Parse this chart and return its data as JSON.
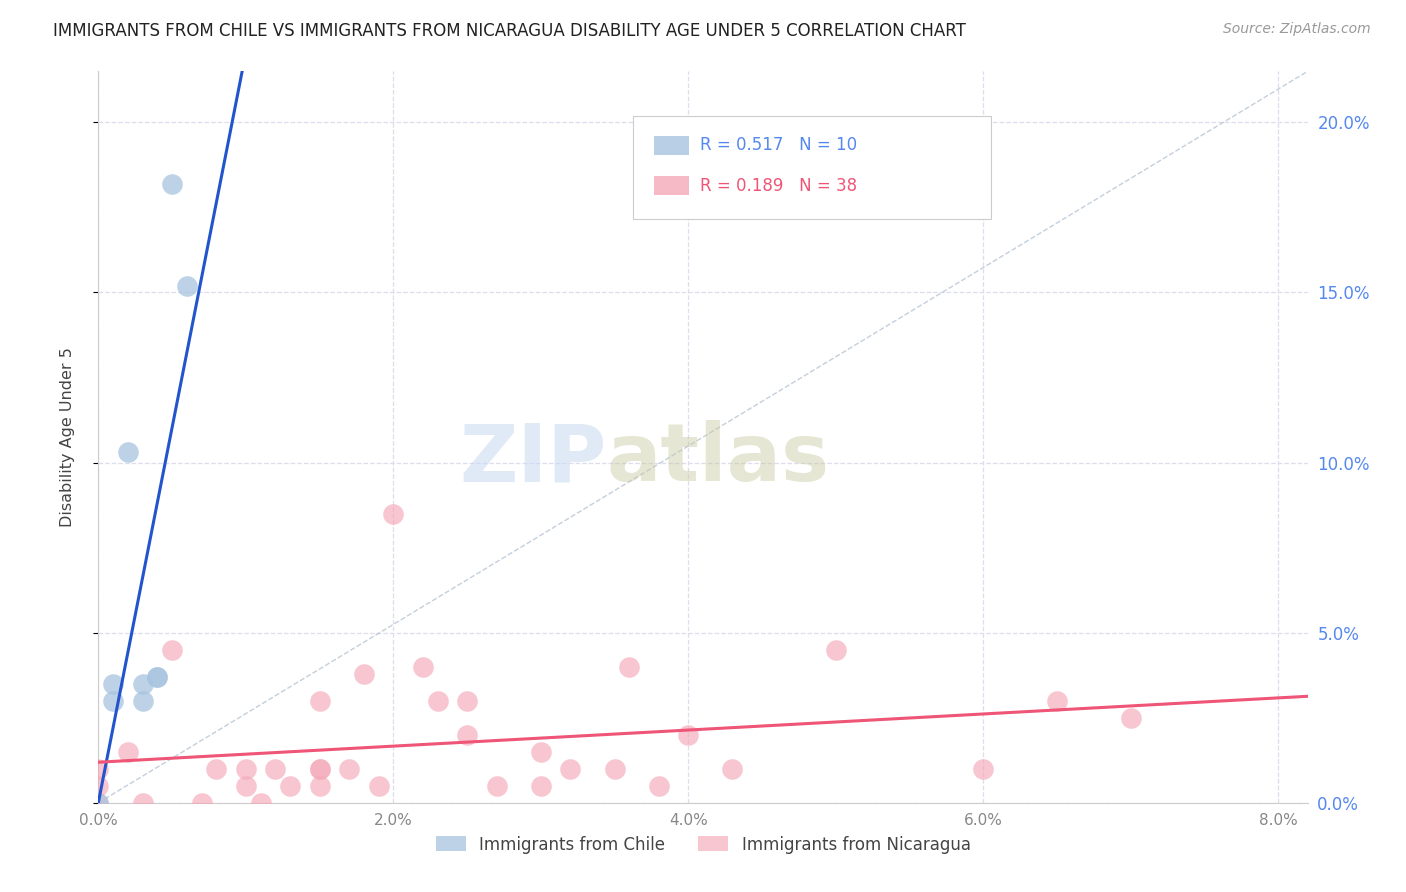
{
  "title": "IMMIGRANTS FROM CHILE VS IMMIGRANTS FROM NICARAGUA DISABILITY AGE UNDER 5 CORRELATION CHART",
  "source": "Source: ZipAtlas.com",
  "ylabel": "Disability Age Under 5",
  "legend_chile": "Immigrants from Chile",
  "legend_nicaragua": "Immigrants from Nicaragua",
  "R_chile": 0.517,
  "N_chile": 10,
  "R_nicaragua": 0.189,
  "N_nicaragua": 38,
  "chile_color": "#A8C4E0",
  "nicaragua_color": "#F4A8B8",
  "chile_line_color": "#2255CC",
  "nicaragua_line_color": "#EE5577",
  "diagonal_color": "#AABBCC",
  "chile_points_x": [
    0.0,
    0.001,
    0.001,
    0.002,
    0.003,
    0.003,
    0.004,
    0.004,
    0.005,
    0.006
  ],
  "chile_points_y": [
    0.0,
    0.03,
    0.035,
    0.103,
    0.03,
    0.035,
    0.037,
    0.037,
    0.182,
    0.152
  ],
  "nicaragua_points_x": [
    0.0,
    0.0,
    0.0,
    0.002,
    0.003,
    0.005,
    0.007,
    0.008,
    0.01,
    0.01,
    0.011,
    0.012,
    0.013,
    0.015,
    0.015,
    0.015,
    0.015,
    0.017,
    0.018,
    0.019,
    0.02,
    0.022,
    0.023,
    0.025,
    0.025,
    0.027,
    0.03,
    0.03,
    0.032,
    0.035,
    0.036,
    0.038,
    0.04,
    0.043,
    0.05,
    0.06,
    0.065,
    0.07
  ],
  "nicaragua_points_y": [
    0.0,
    0.005,
    0.01,
    0.015,
    0.0,
    0.045,
    0.0,
    0.01,
    0.005,
    0.01,
    0.0,
    0.01,
    0.005,
    0.01,
    0.01,
    0.005,
    0.03,
    0.01,
    0.038,
    0.005,
    0.085,
    0.04,
    0.03,
    0.02,
    0.03,
    0.005,
    0.015,
    0.005,
    0.01,
    0.01,
    0.04,
    0.005,
    0.02,
    0.01,
    0.045,
    0.01,
    0.03,
    0.025
  ],
  "xlim": [
    0.0,
    0.082
  ],
  "ylim": [
    0.0,
    0.215
  ],
  "y_ticks": [
    0.0,
    0.05,
    0.1,
    0.15,
    0.2
  ],
  "x_ticks": [
    0.0,
    0.02,
    0.04,
    0.06,
    0.08
  ],
  "x_tick_labels": [
    "0.0%",
    "2.0%",
    "4.0%",
    "6.0%",
    "8.0%"
  ],
  "y_tick_labels_right": [
    "0.0%",
    "5.0%",
    "10.0%",
    "15.0%",
    "20.0%"
  ],
  "background_color": "#ffffff",
  "grid_color": "#ddddee",
  "tick_color": "#888888",
  "right_tick_color": "#5588EE"
}
